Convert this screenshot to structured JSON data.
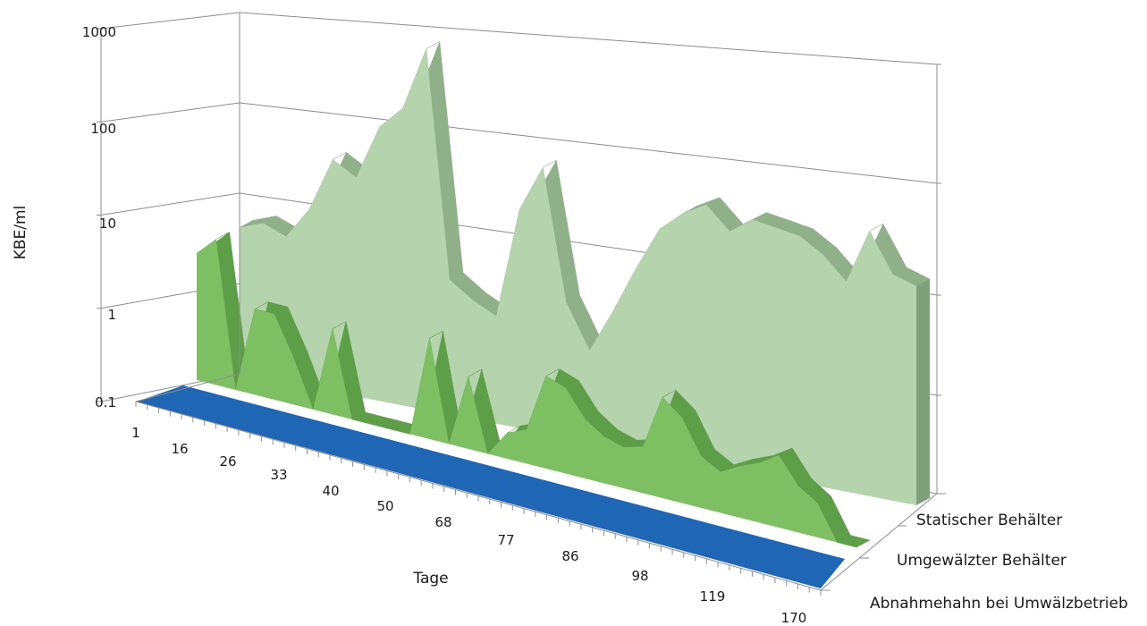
{
  "chart_data": {
    "type": "area",
    "subtype": "3d-area",
    "yscale": "log",
    "ylim": [
      0.1,
      1000
    ],
    "yticks": [
      "0.1",
      "1",
      "10",
      "100",
      "1000"
    ],
    "ylabel": "KBE/ml",
    "xlabel": "Tage",
    "xticks": [
      "1",
      "16",
      "26",
      "33",
      "40",
      "50",
      "68",
      "77",
      "86",
      "98",
      "119",
      "170"
    ],
    "grid": true,
    "series": [
      {
        "name": "Statischer Behälter",
        "color": "#b5d3ad",
        "values": [
          4,
          5,
          4,
          9,
          35,
          25,
          100,
          180,
          900,
          3,
          2,
          1.5,
          25,
          80,
          3,
          1,
          3,
          10,
          30,
          50,
          70,
          40,
          60,
          55,
          50,
          35,
          20,
          80,
          30,
          25
        ]
      },
      {
        "name": "Umgewälzter Behälter",
        "color": "#7fbf63",
        "values": [
          3,
          5,
          0.1,
          1,
          1,
          0.35,
          0.1,
          1,
          0.1,
          0.1,
          0.1,
          0.1,
          1.5,
          0.1,
          0.7,
          0.1,
          0.2,
          0.25,
          1.2,
          1,
          0.5,
          0.35,
          0.3,
          0.35,
          1.5,
          1,
          0.4,
          0.3,
          0.4,
          0.5,
          0.7,
          0.35,
          0.25,
          0.05,
          0.1
        ]
      },
      {
        "name": "Abnahmehahn bei Umwälzbetrieb",
        "color": "#1f66b5",
        "values": [
          0.1,
          0.1,
          0.1,
          0.1,
          0.1,
          0.1,
          0.1,
          0.1,
          0.1,
          0.1,
          0.1,
          0.1
        ]
      }
    ]
  }
}
